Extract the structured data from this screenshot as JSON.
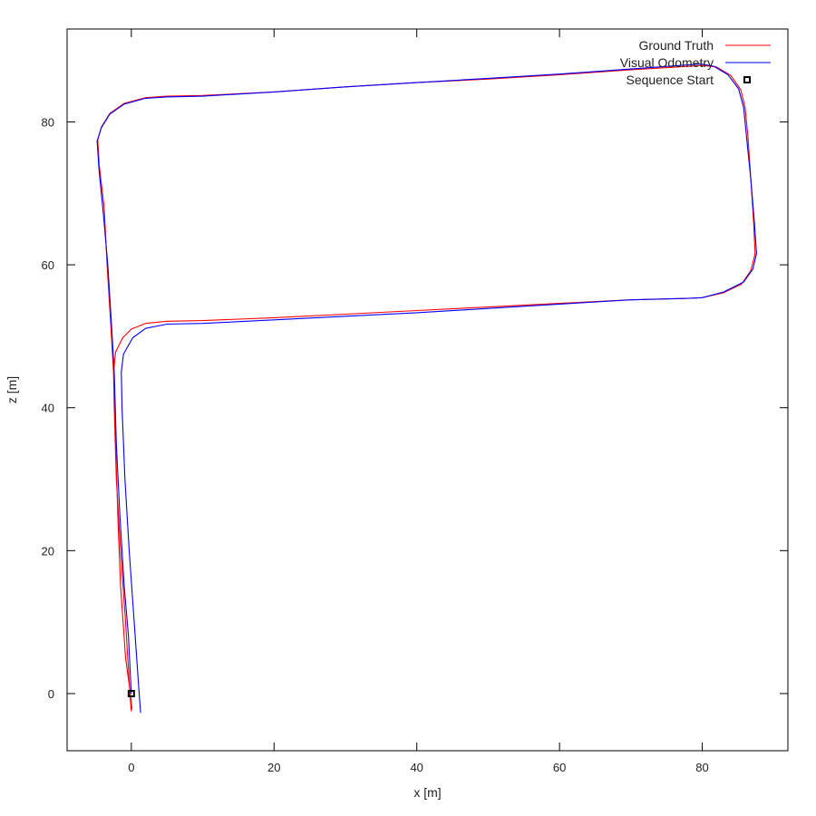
{
  "chart_data": {
    "type": "line",
    "xlabel": "x [m]",
    "ylabel": "z [m]",
    "xlim": [
      -9,
      92
    ],
    "ylim": [
      -8,
      93
    ],
    "xticks": [
      0,
      20,
      40,
      60,
      80
    ],
    "yticks": [
      0,
      20,
      40,
      60,
      80
    ],
    "grid": false,
    "legend_position": "top-right",
    "series": [
      {
        "name": "Ground Truth",
        "color": "#ff0000",
        "points": [
          [
            0,
            -2.5
          ],
          [
            -0.2,
            0
          ],
          [
            -0.8,
            10
          ],
          [
            -1.5,
            20
          ],
          [
            -2.1,
            30
          ],
          [
            -2.4,
            40
          ],
          [
            -2.5,
            45
          ],
          [
            -2.2,
            47.8
          ],
          [
            -1.2,
            49.8
          ],
          [
            0,
            51
          ],
          [
            2,
            51.8
          ],
          [
            5,
            52.1
          ],
          [
            10,
            52.2
          ],
          [
            20,
            52.6
          ],
          [
            30,
            53.1
          ],
          [
            40,
            53.6
          ],
          [
            50,
            54.1
          ],
          [
            60,
            54.6
          ],
          [
            70,
            55.1
          ],
          [
            78,
            55.3
          ],
          [
            80,
            55.4
          ],
          [
            83,
            56.1
          ],
          [
            85.5,
            57.3
          ],
          [
            86.8,
            59.2
          ],
          [
            87.4,
            61.5
          ],
          [
            87.2,
            66
          ],
          [
            86.8,
            72
          ],
          [
            86.4,
            78
          ],
          [
            86,
            82
          ],
          [
            85.4,
            84.5
          ],
          [
            84,
            86.5
          ],
          [
            82,
            87.7
          ],
          [
            80,
            87.9
          ],
          [
            70,
            87.3
          ],
          [
            60,
            86.6
          ],
          [
            50,
            86
          ],
          [
            40,
            85.5
          ],
          [
            30,
            84.9
          ],
          [
            20,
            84.2
          ],
          [
            10,
            83.7
          ],
          [
            5,
            83.6
          ],
          [
            2,
            83.4
          ],
          [
            -1,
            82.6
          ],
          [
            -3,
            81.2
          ],
          [
            -4.2,
            79.3
          ],
          [
            -4.7,
            77.5
          ],
          [
            -4.5,
            74
          ],
          [
            -3.8,
            68
          ],
          [
            -3.4,
            60
          ],
          [
            -2.9,
            52
          ],
          [
            -2.5,
            45
          ],
          [
            -2.2,
            35
          ],
          [
            -1.9,
            25
          ],
          [
            -1.5,
            15
          ],
          [
            -0.8,
            5
          ],
          [
            -0.2,
            0.5
          ],
          [
            0.1,
            -2.2
          ]
        ]
      },
      {
        "name": "Visual Odometry",
        "color": "#0000ff",
        "points": [
          [
            1.3,
            -2.7
          ],
          [
            1.1,
            0
          ],
          [
            0.4,
            10
          ],
          [
            -0.3,
            20
          ],
          [
            -0.9,
            30
          ],
          [
            -1.3,
            40
          ],
          [
            -1.4,
            45
          ],
          [
            -1.1,
            47.5
          ],
          [
            0.2,
            49.8
          ],
          [
            2,
            51.1
          ],
          [
            5,
            51.7
          ],
          [
            10,
            51.8
          ],
          [
            20,
            52.3
          ],
          [
            30,
            52.8
          ],
          [
            40,
            53.3
          ],
          [
            50,
            53.9
          ],
          [
            60,
            54.5
          ],
          [
            70,
            55.1
          ],
          [
            78,
            55.3
          ],
          [
            80,
            55.4
          ],
          [
            83,
            56.2
          ],
          [
            85.8,
            57.6
          ],
          [
            87.1,
            59.4
          ],
          [
            87.6,
            61.6
          ],
          [
            87.3,
            66
          ],
          [
            86.8,
            72
          ],
          [
            86.2,
            78
          ],
          [
            85.8,
            82
          ],
          [
            85.1,
            84.6
          ],
          [
            83.6,
            86.6
          ],
          [
            81.6,
            87.8
          ],
          [
            79.8,
            88.1
          ],
          [
            70,
            87.4
          ],
          [
            60,
            86.7
          ],
          [
            50,
            86.1
          ],
          [
            40,
            85.5
          ],
          [
            30,
            84.9
          ],
          [
            20,
            84.2
          ],
          [
            10,
            83.6
          ],
          [
            5,
            83.5
          ],
          [
            2,
            83.3
          ],
          [
            -1,
            82.5
          ],
          [
            -3,
            81.1
          ],
          [
            -4.2,
            79.2
          ],
          [
            -4.8,
            77.3
          ],
          [
            -4.5,
            73
          ],
          [
            -3.9,
            67
          ],
          [
            -3.3,
            60
          ],
          [
            -2.8,
            52
          ],
          [
            -2.4,
            45
          ],
          [
            -2.1,
            35
          ],
          [
            -1.6,
            25
          ],
          [
            -1.0,
            15
          ],
          [
            -0.4,
            8
          ],
          [
            0,
            0
          ]
        ]
      }
    ],
    "markers": [
      {
        "name": "Sequence Start",
        "points": [
          [
            0,
            0
          ]
        ],
        "shape": "square",
        "color": "#000000"
      }
    ]
  }
}
